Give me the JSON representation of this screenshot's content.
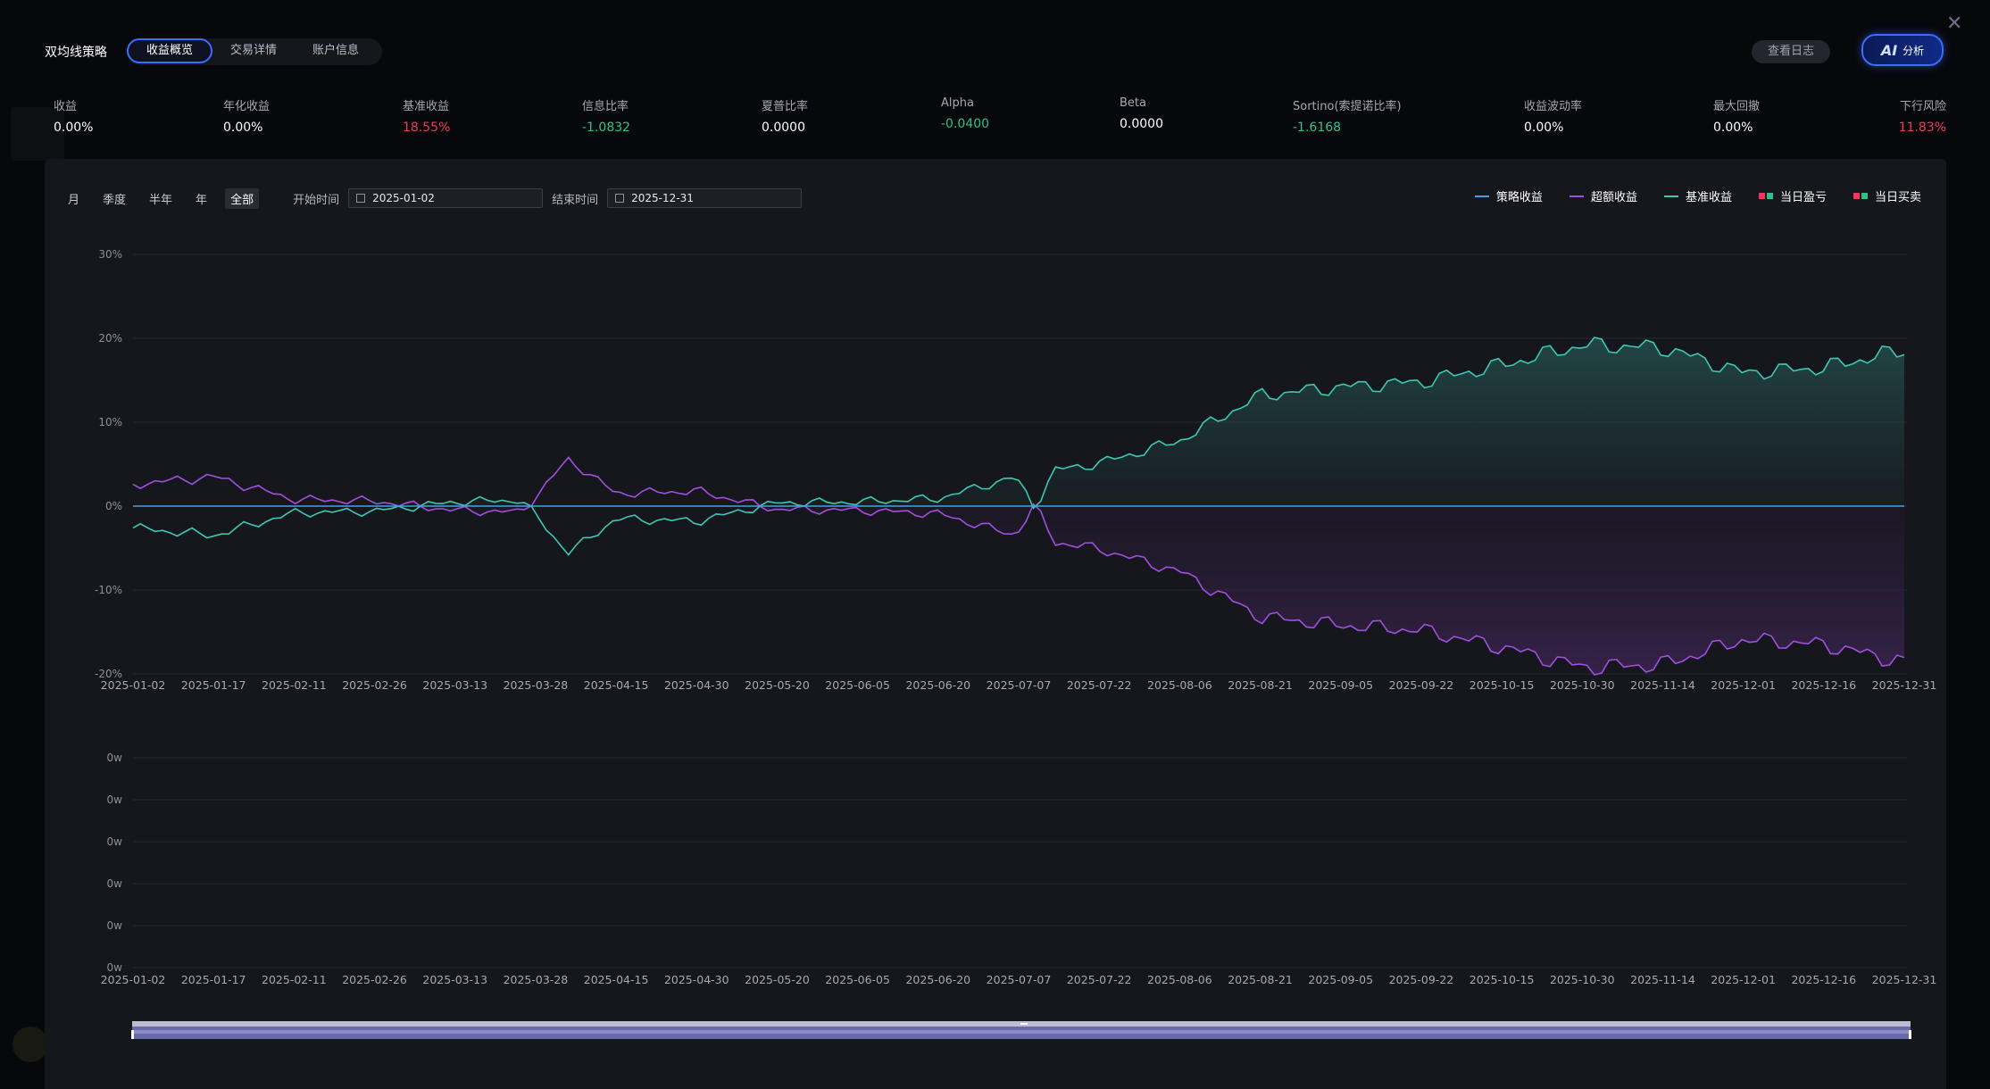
{
  "header": {
    "title": "双均线策略",
    "tabs": [
      {
        "label": "收益概览",
        "active": true
      },
      {
        "label": "交易详情",
        "active": false
      },
      {
        "label": "账户信息",
        "active": false
      }
    ],
    "log_button": "查看日志",
    "ai_button_mark": "AI",
    "ai_button_label": "分析",
    "close_icon": "close-icon"
  },
  "metrics": [
    {
      "label": "收益",
      "value": "0.00%",
      "color": "#ffffff"
    },
    {
      "label": "年化收益",
      "value": "0.00%",
      "color": "#ffffff"
    },
    {
      "label": "基准收益",
      "value": "18.55%",
      "color": "#f0365a"
    },
    {
      "label": "信息比率",
      "value": "-1.0832",
      "color": "#2fc08a"
    },
    {
      "label": "夏普比率",
      "value": "0.0000",
      "color": "#ffffff"
    },
    {
      "label": "Alpha",
      "value": "-0.0400",
      "color": "#2fc08a"
    },
    {
      "label": "Beta",
      "value": "0.0000",
      "color": "#ffffff"
    },
    {
      "label": "Sortino(索提诺比率)",
      "value": "-1.6168",
      "color": "#2fc08a"
    },
    {
      "label": "收益波动率",
      "value": "0.00%",
      "color": "#ffffff"
    },
    {
      "label": "最大回撤",
      "value": "0.00%",
      "color": "#ffffff"
    },
    {
      "label": "下行风险",
      "value": "11.83%",
      "color": "#f0365a"
    }
  ],
  "controls": {
    "periods": [
      {
        "label": "月",
        "active": false
      },
      {
        "label": "季度",
        "active": false
      },
      {
        "label": "半年",
        "active": false
      },
      {
        "label": "年",
        "active": false
      },
      {
        "label": "全部",
        "active": true
      }
    ],
    "start_label": "开始时间",
    "start_value": "2025-01-02",
    "end_label": "结束时间",
    "end_value": "2025-12-31"
  },
  "legend": {
    "strategy": {
      "label": "策略收益",
      "color": "#3ea2e8"
    },
    "excess": {
      "label": "超额收益",
      "color": "#a04fe0"
    },
    "benchmark": {
      "label": "基准收益",
      "color": "#3cc8b4"
    },
    "daily_pnl": {
      "label": "当日盈亏",
      "colors": [
        "#f0365a",
        "#2fc08a"
      ]
    },
    "daily_trade": {
      "label": "当日买卖",
      "colors": [
        "#f0365a",
        "#2fc08a"
      ]
    }
  },
  "chart_data": [
    {
      "type": "line",
      "x_tick_labels": [
        "2025-01-02",
        "2025-01-17",
        "2025-02-11",
        "2025-02-26",
        "2025-03-13",
        "2025-03-28",
        "2025-04-15",
        "2025-04-30",
        "2025-05-20",
        "2025-06-05",
        "2025-06-20",
        "2025-07-07",
        "2025-07-22",
        "2025-08-06",
        "2025-08-21",
        "2025-09-05",
        "2025-09-22",
        "2025-10-15",
        "2025-10-30",
        "2025-11-14",
        "2025-12-01",
        "2025-12-16",
        "2025-12-31"
      ],
      "y_tick_labels": [
        "30%",
        "20%",
        "10%",
        "0%",
        "-10%",
        "-20%"
      ],
      "ylim": [
        -20,
        30
      ],
      "grid": true,
      "legend_position": "top-right",
      "series": [
        {
          "name": "策略收益",
          "color": "#3ea2e8",
          "values": [
            0,
            0,
            0,
            0,
            0,
            0,
            0,
            0,
            0,
            0,
            0,
            0,
            0,
            0,
            0,
            0,
            0,
            0,
            0,
            0,
            0,
            0,
            0
          ]
        },
        {
          "name": "基准收益",
          "color": "#3cc8b4",
          "values": [
            -2.6,
            -3.5,
            -0.8,
            -0.6,
            0.5,
            0.8,
            -1.5,
            -1.8,
            0.4,
            0.5,
            0.9,
            3.6,
            5.1,
            7.8,
            13.2,
            14.2,
            14.8,
            16.8,
            19.2,
            18.9,
            15.9,
            16.5,
            18.6
          ]
        },
        {
          "name": "超额收益",
          "color": "#a04fe0",
          "values": [
            2.6,
            3.5,
            0.8,
            0.6,
            -0.5,
            -0.8,
            1.5,
            1.8,
            -0.4,
            -0.5,
            -0.9,
            -3.6,
            -5.1,
            -7.8,
            -13.2,
            -14.2,
            -14.8,
            -16.8,
            -19.2,
            -18.9,
            -15.9,
            -16.5,
            -18.6
          ]
        }
      ]
    },
    {
      "type": "bar",
      "x_tick_labels": [
        "2025-01-02",
        "2025-01-17",
        "2025-02-11",
        "2025-02-26",
        "2025-03-13",
        "2025-03-28",
        "2025-04-15",
        "2025-04-30",
        "2025-05-20",
        "2025-06-05",
        "2025-06-20",
        "2025-07-07",
        "2025-07-22",
        "2025-08-06",
        "2025-08-21",
        "2025-09-05",
        "2025-09-22",
        "2025-10-15",
        "2025-10-30",
        "2025-11-14",
        "2025-12-01",
        "2025-12-16",
        "2025-12-31"
      ],
      "y_tick_labels": [
        "0w",
        "0w",
        "0w",
        "0w",
        "0w",
        "0w"
      ],
      "series": [
        {
          "name": "当日盈亏",
          "values": []
        },
        {
          "name": "当日买卖",
          "values": []
        }
      ]
    }
  ]
}
